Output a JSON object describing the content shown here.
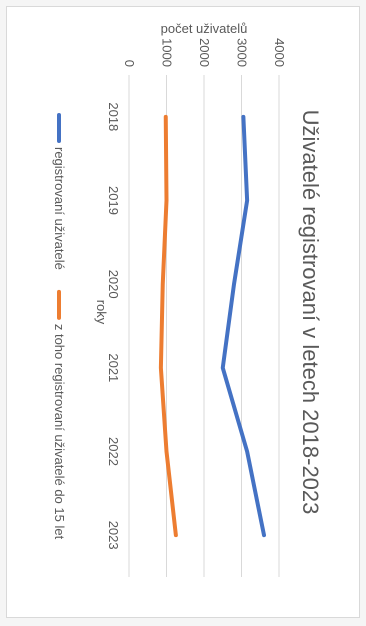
{
  "chart_data": {
    "type": "line",
    "title": "Uživatelé registrovaní v letech 2018-2023",
    "xlabel": "roky",
    "ylabel": "počet uživatelů",
    "categories": [
      "2018",
      "2019",
      "2020",
      "2021",
      "2022",
      "2023"
    ],
    "ylim": [
      0,
      4000
    ],
    "yticks": [
      0,
      1000,
      2000,
      3000,
      4000
    ],
    "grid": true,
    "legend_position": "bottom",
    "series": [
      {
        "name": "registrovaní uživatelé",
        "values": [
          3050,
          3150,
          2800,
          2500,
          3150,
          3600
        ],
        "color": "#4472c4"
      },
      {
        "name": "z toho registrovaní uživatelé do 15 let",
        "values": [
          980,
          1000,
          900,
          850,
          1000,
          1250
        ],
        "color": "#ed7d31"
      }
    ]
  }
}
